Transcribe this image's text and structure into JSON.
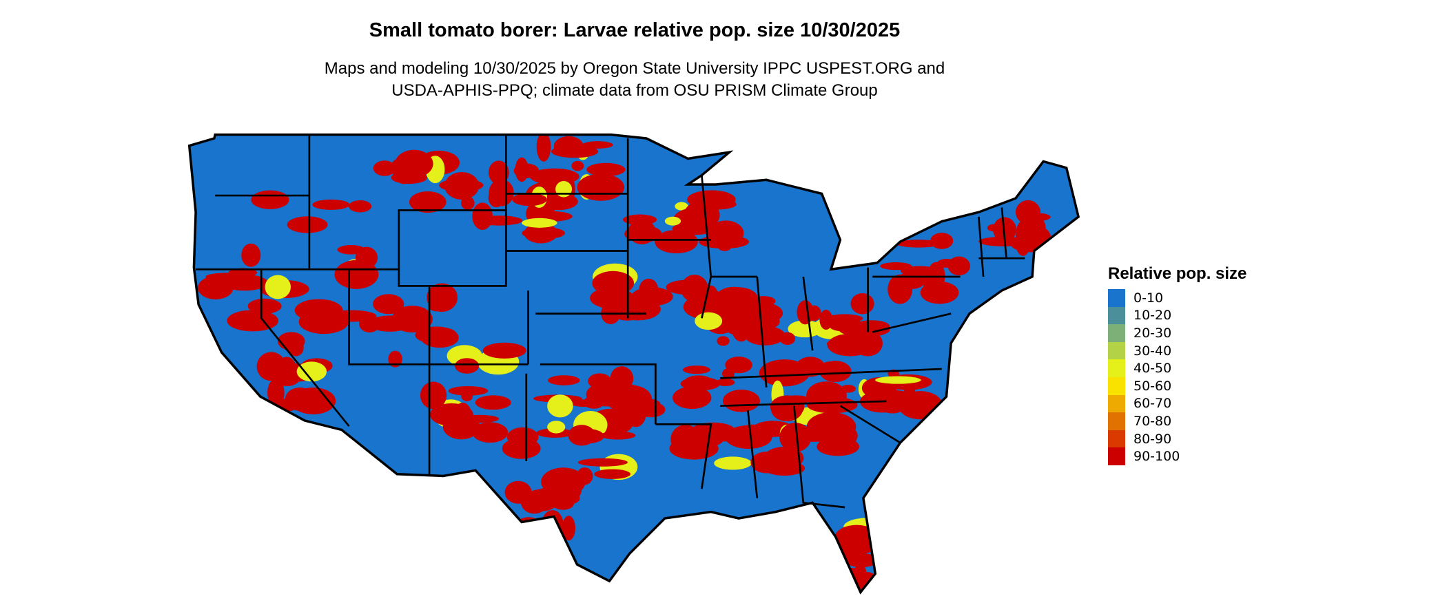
{
  "title": "Small tomato borer: Larvae relative pop. size 10/30/2025",
  "subtitle": [
    "Maps and modeling 10/30/2025 by Oregon State University IPPC USPEST.ORG and",
    "USDA-APHIS-PPQ; climate data from OSU PRISM Climate Group"
  ],
  "legend": {
    "title": "Relative pop. size",
    "items": [
      {
        "label": "0-10",
        "color": "#1874CD"
      },
      {
        "label": "10-20",
        "color": "#4A8F9A"
      },
      {
        "label": "20-30",
        "color": "#7DB076"
      },
      {
        "label": "30-40",
        "color": "#B4D246"
      },
      {
        "label": "40-50",
        "color": "#E5F01A"
      },
      {
        "label": "50-60",
        "color": "#F9E200"
      },
      {
        "label": "60-70",
        "color": "#EEAA00"
      },
      {
        "label": "70-80",
        "color": "#E27200"
      },
      {
        "label": "80-90",
        "color": "#DA3A00"
      },
      {
        "label": "90-100",
        "color": "#CD0000"
      }
    ]
  },
  "map": {
    "region": "Contiguous United States",
    "dominant_classes": [
      "0-10",
      "90-100"
    ]
  }
}
